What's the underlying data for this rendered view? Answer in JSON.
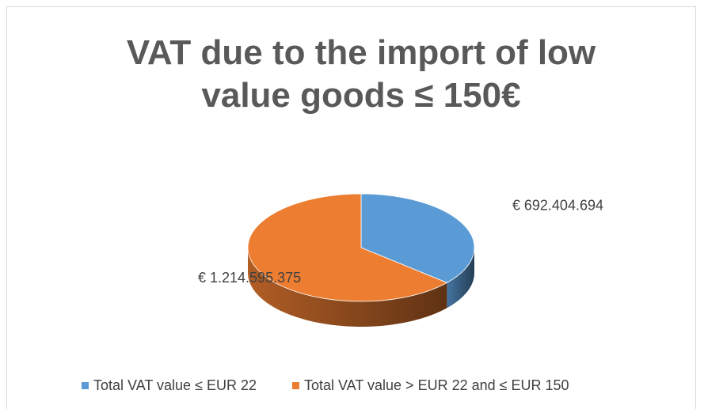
{
  "chart_data": {
    "type": "pie3d",
    "title": "VAT due to the import of low value goods ≤ 150€",
    "categories": [
      "Total VAT value ≤ EUR 22",
      "Total VAT value > EUR 22 and ≤ EUR 150"
    ],
    "values": [
      692404694,
      1214595375
    ],
    "value_labels": [
      "€ 692.404.694",
      "€ 1.214.595.375"
    ],
    "colors": [
      "#5b9bd5",
      "#ed7d31"
    ],
    "legend": "bottom"
  }
}
